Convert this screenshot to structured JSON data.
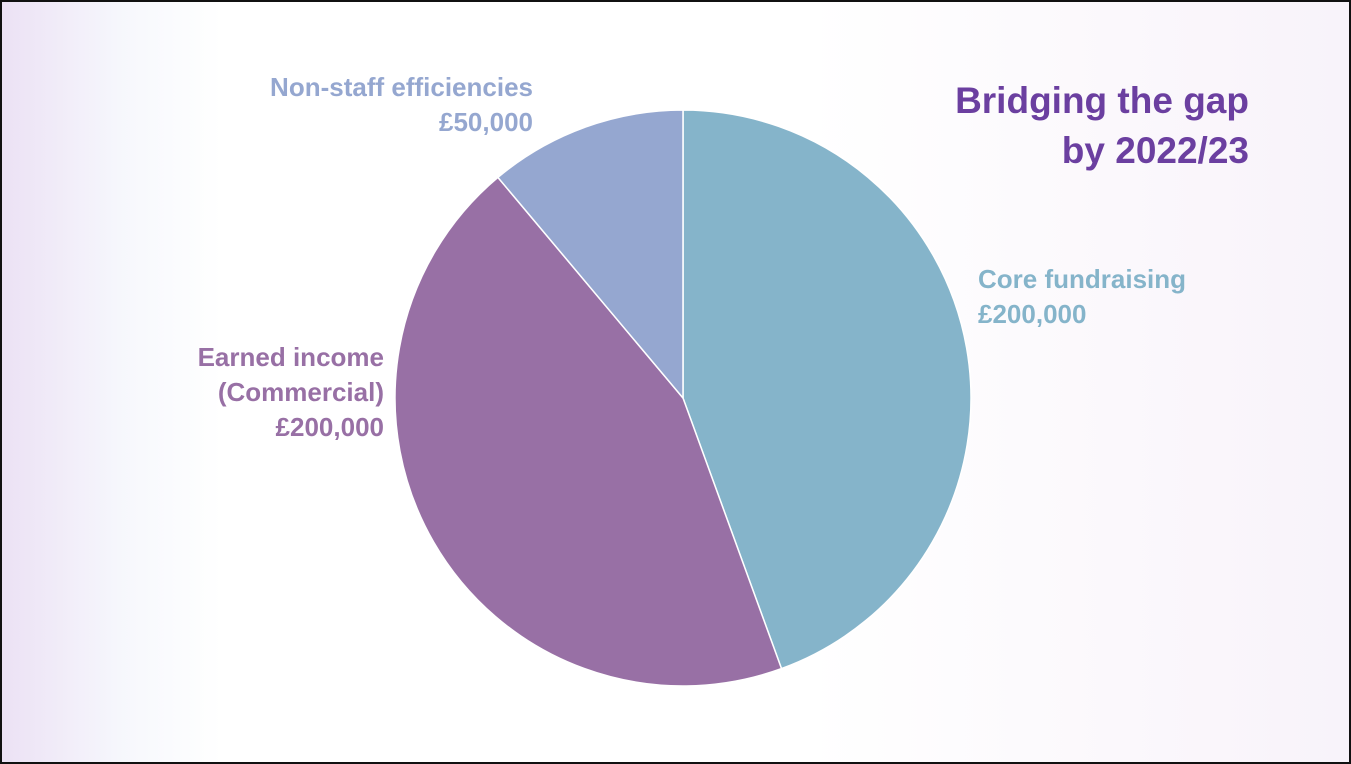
{
  "chart_data": {
    "type": "pie",
    "title": "Bridging the gap\nby 2022/23",
    "categories": [
      "Core fundraising",
      "Earned income\n(Commercial)",
      "Non-staff efficiencies"
    ],
    "values": [
      200000,
      200000,
      50000
    ],
    "value_labels": [
      "£200,000",
      "£200,000",
      "£50,000"
    ],
    "colors": [
      "#85b4ca",
      "#9870a5",
      "#95a7d0"
    ]
  }
}
